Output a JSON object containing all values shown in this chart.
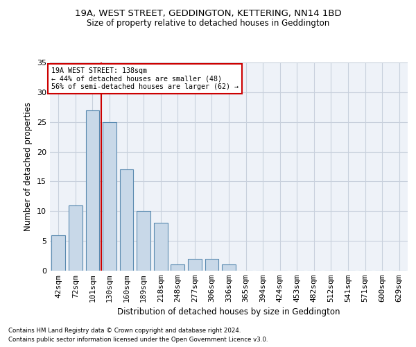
{
  "title1": "19A, WEST STREET, GEDDINGTON, KETTERING, NN14 1BD",
  "title2": "Size of property relative to detached houses in Geddington",
  "xlabel": "Distribution of detached houses by size in Geddington",
  "ylabel": "Number of detached properties",
  "bar_color": "#c8d8e8",
  "bar_edgecolor": "#5a8ab0",
  "categories": [
    "42sqm",
    "72sqm",
    "101sqm",
    "130sqm",
    "160sqm",
    "189sqm",
    "218sqm",
    "248sqm",
    "277sqm",
    "306sqm",
    "336sqm",
    "365sqm",
    "394sqm",
    "424sqm",
    "453sqm",
    "482sqm",
    "512sqm",
    "541sqm",
    "571sqm",
    "600sqm",
    "629sqm"
  ],
  "values": [
    6,
    11,
    27,
    25,
    17,
    10,
    8,
    1,
    2,
    2,
    1,
    0,
    0,
    0,
    0,
    0,
    0,
    0,
    0,
    0,
    0
  ],
  "annotation_line1": "19A WEST STREET: 138sqm",
  "annotation_line2": "← 44% of detached houses are smaller (48)",
  "annotation_line3": "56% of semi-detached houses are larger (62) →",
  "vline_color": "#cc0000",
  "annotation_box_edgecolor": "#cc0000",
  "footnote1": "Contains HM Land Registry data © Crown copyright and database right 2024.",
  "footnote2": "Contains public sector information licensed under the Open Government Licence v3.0.",
  "ylim": [
    0,
    35
  ],
  "background_color": "#eef2f8",
  "grid_color": "#c8d0dc",
  "vline_x": 2.5
}
